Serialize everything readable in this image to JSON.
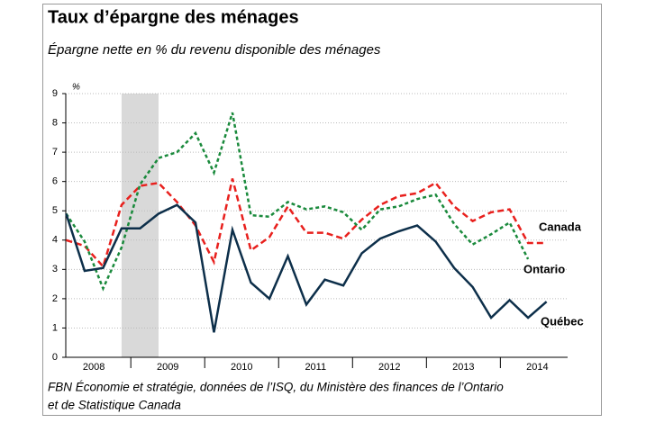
{
  "chart_data": {
    "type": "line",
    "title": "Taux d’épargne des ménages",
    "subtitle": "Épargne nette en % du revenu disponible des ménages",
    "y_unit": "%",
    "source": "FBN Économie et stratégie, données de l’ISQ, du Ministère des finances de l’Ontario",
    "source_line2": "et de Statistique Canada",
    "x": [
      2008.125,
      2008.375,
      2008.625,
      2008.875,
      2009.125,
      2009.375,
      2009.625,
      2009.875,
      2010.125,
      2010.375,
      2010.625,
      2010.875,
      2011.125,
      2011.375,
      2011.625,
      2011.875,
      2012.125,
      2012.375,
      2012.625,
      2012.875,
      2013.125,
      2013.375,
      2013.625,
      2013.875,
      2014.125,
      2014.375,
      2014.625
    ],
    "xlim": [
      2008.12,
      2014.91
    ],
    "xticks": [
      2009,
      2010,
      2011,
      2012,
      2013,
      2014
    ],
    "xlabels": [
      2008,
      2009,
      2010,
      2011,
      2012,
      2013,
      2014
    ],
    "recession": [
      2008.875,
      2009.375
    ],
    "ylim": [
      0,
      9
    ],
    "yticks": [
      0,
      1,
      2,
      3,
      4,
      5,
      6,
      7,
      8,
      9
    ],
    "grid": true,
    "series": [
      {
        "name": "Canada",
        "color": "#e8201d",
        "dash": "7,4",
        "values": [
          4.0,
          3.8,
          3.1,
          5.2,
          5.85,
          5.95,
          5.3,
          4.5,
          3.25,
          6.1,
          3.65,
          4.1,
          5.15,
          4.25,
          4.25,
          4.05,
          4.7,
          5.2,
          5.5,
          5.6,
          5.95,
          5.15,
          4.65,
          4.95,
          5.05,
          3.9,
          3.9
        ]
      },
      {
        "name": "Ontario",
        "color": "#1a8a3c",
        "dash": "4,3",
        "values": [
          4.9,
          3.95,
          2.35,
          3.75,
          5.9,
          6.8,
          7.0,
          7.65,
          6.3,
          8.35,
          4.85,
          4.8,
          5.3,
          5.05,
          5.15,
          4.95,
          4.35,
          5.05,
          5.15,
          5.4,
          5.55,
          4.55,
          3.85,
          4.2,
          4.6,
          3.35,
          null
        ]
      },
      {
        "name": "Québec",
        "color": "#0d2f4a",
        "dash": "",
        "values": [
          4.9,
          2.95,
          3.05,
          4.4,
          4.4,
          4.9,
          5.2,
          4.6,
          0.85,
          4.35,
          2.55,
          2.0,
          3.45,
          1.8,
          2.65,
          2.45,
          3.55,
          4.05,
          4.3,
          4.5,
          3.95,
          3.05,
          2.4,
          1.35,
          1.95,
          1.35,
          1.9
        ]
      }
    ]
  }
}
